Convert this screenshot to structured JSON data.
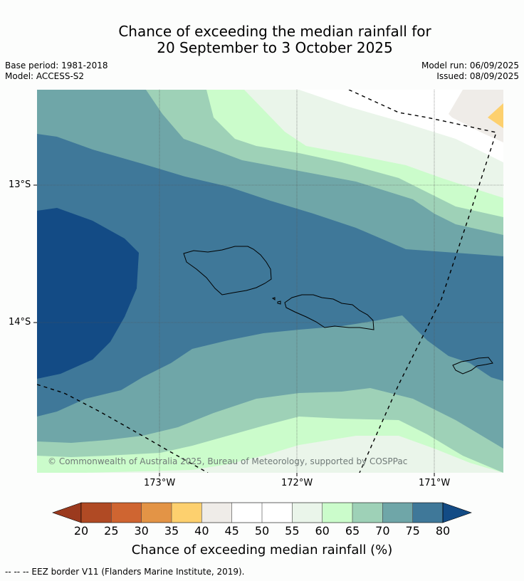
{
  "title": {
    "line1": "Chance of exceeding the median rainfall for",
    "line2": "20 September to 3 October 2025"
  },
  "meta": {
    "base_period": "Base period: 1981-2018",
    "model": "Model: ACCESS-S2",
    "model_run": "Model run: 06/09/2025",
    "issued": "Issued: 08/09/2025"
  },
  "axes": {
    "lat_ticks": [
      "13°S",
      "14°S"
    ],
    "lon_ticks": [
      "173°W",
      "172°W",
      "171°W"
    ]
  },
  "copyright": "© Commonwealth of Australia 2025, Bureau of Meteorology, supported by COSPPac",
  "colorbar": {
    "title": "Chance of exceeding median rainfall (%)",
    "ticks": [
      "20",
      "25",
      "30",
      "35",
      "40",
      "45",
      "50",
      "55",
      "60",
      "65",
      "70",
      "75",
      "80"
    ],
    "colors": [
      "#b04a24",
      "#cf6531",
      "#e39446",
      "#fdd06e",
      "#efece8",
      "#ffffff",
      "#ffffff",
      "#eaf5ea",
      "#cbfccb",
      "#9ed1b7",
      "#6fa6a8",
      "#3f7899"
    ],
    "under_color": "#9b3a1e",
    "over_color": "#134b85"
  },
  "map_colors": {
    "band_80_plus": "#134b85",
    "band_75_80": "#3f7899",
    "band_70_75": "#6fa6a8",
    "band_65_70": "#9ed1b7",
    "band_60_65": "#cbfccb",
    "band_55_60": "#eaf5ea",
    "band_45_55": "#ffffff",
    "band_40_45": "#efece8",
    "band_35_40": "#fdd06e"
  },
  "footnote": "--  --  -- EEZ border V11 (Flanders Marine Institute, 2019)."
}
